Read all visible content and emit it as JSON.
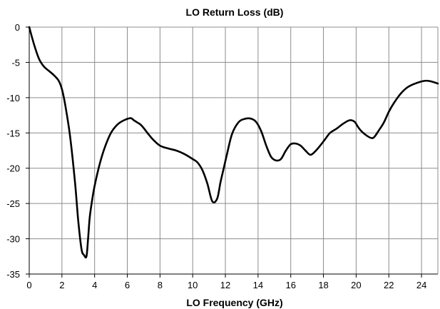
{
  "chart_data": {
    "type": "line",
    "title": "LO Return Loss (dB)",
    "xlabel": "LO Frequency (GHz)",
    "ylabel": "",
    "xlim": [
      0,
      25
    ],
    "ylim": [
      -35,
      0
    ],
    "xticks": [
      0,
      2,
      4,
      6,
      8,
      10,
      12,
      14,
      16,
      18,
      20,
      22,
      24
    ],
    "yticks": [
      0,
      -5,
      -10,
      -15,
      -20,
      -25,
      -30,
      -35
    ],
    "grid": true,
    "series": [
      {
        "name": "",
        "color": "#000000",
        "x": [
          0,
          0.3,
          0.6,
          0.9,
          1.2,
          1.5,
          1.8,
          2.0,
          2.2,
          2.5,
          2.8,
          3.0,
          3.2,
          3.35,
          3.5,
          3.6,
          3.7,
          3.85,
          4.0,
          4.3,
          4.6,
          5.0,
          5.4,
          5.8,
          6.2,
          6.4,
          6.6,
          6.8,
          7.0,
          7.3,
          7.6,
          8.0,
          8.5,
          9.0,
          9.5,
          10.0,
          10.3,
          10.6,
          10.9,
          11.2,
          11.5,
          11.7,
          11.9,
          12.1,
          12.4,
          12.8,
          13.2,
          13.6,
          13.9,
          14.2,
          14.5,
          14.8,
          15.1,
          15.4,
          15.7,
          16.0,
          16.3,
          16.6,
          16.9,
          17.2,
          17.5,
          17.8,
          18.1,
          18.4,
          18.8,
          19.2,
          19.6,
          19.9,
          20.1,
          20.3,
          20.6,
          20.9,
          21.1,
          21.4,
          21.7,
          22.0,
          22.3,
          22.7,
          23.1,
          23.5,
          24.0,
          24.3,
          24.6,
          25.0
        ],
        "y": [
          0,
          -2.5,
          -4.5,
          -5.6,
          -6.2,
          -6.8,
          -7.6,
          -8.8,
          -11,
          -15.5,
          -22,
          -27.5,
          -31.5,
          -32.3,
          -32.5,
          -30,
          -27,
          -24.5,
          -22.5,
          -19.5,
          -17.2,
          -15,
          -13.8,
          -13.2,
          -12.9,
          -13.2,
          -13.5,
          -13.8,
          -14.3,
          -15.2,
          -16,
          -16.8,
          -17.2,
          -17.5,
          -18,
          -18.7,
          -19.2,
          -20.3,
          -22.2,
          -24.7,
          -24.3,
          -22,
          -20,
          -18,
          -15.2,
          -13.5,
          -13.0,
          -13.0,
          -13.5,
          -14.8,
          -16.8,
          -18.4,
          -18.9,
          -18.7,
          -17.5,
          -16.6,
          -16.5,
          -16.8,
          -17.5,
          -18.1,
          -17.6,
          -16.8,
          -15.9,
          -15.0,
          -14.4,
          -13.7,
          -13.2,
          -13.4,
          -14.1,
          -14.7,
          -15.3,
          -15.7,
          -15.6,
          -14.6,
          -13.5,
          -12.0,
          -10.8,
          -9.5,
          -8.6,
          -8.1,
          -7.7,
          -7.6,
          -7.7,
          -8.0
        ]
      }
    ]
  }
}
